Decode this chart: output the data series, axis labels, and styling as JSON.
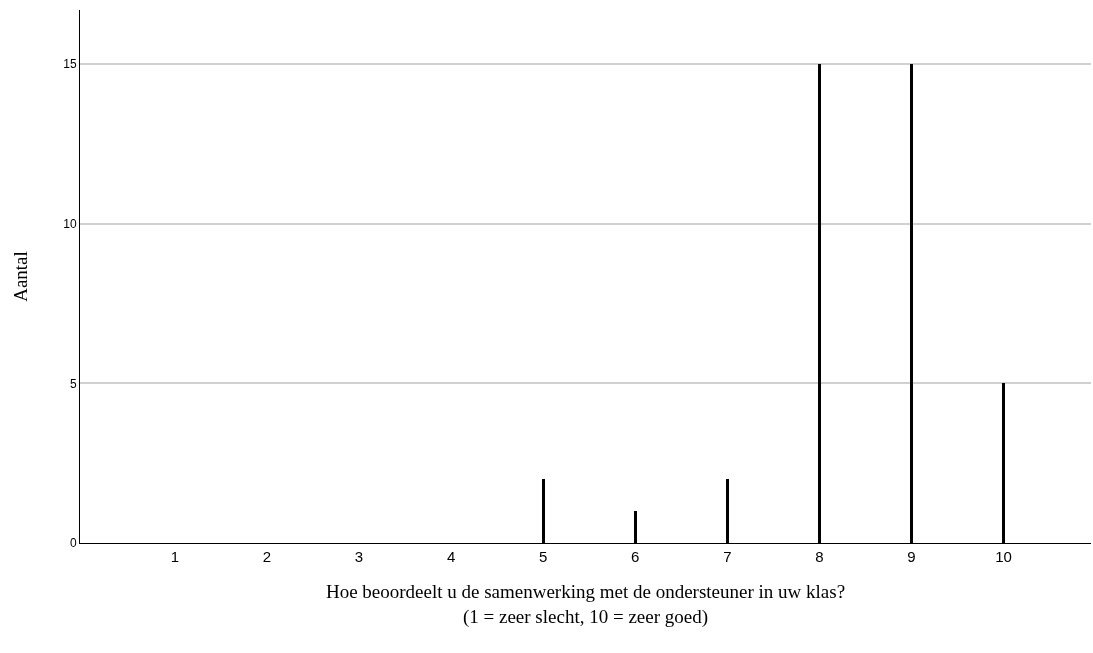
{
  "chart_data": {
    "type": "bar",
    "xlabel": "Hoe beoordeelt u de samenwerking met de ondersteuner in uw klas?\n(1 = zeer slecht, 10 = zeer goed)",
    "ylabel": "Aantal",
    "categories": [
      "1",
      "2",
      "3",
      "4",
      "5",
      "6",
      "7",
      "8",
      "9",
      "10"
    ],
    "values": [
      0,
      0,
      0,
      0,
      2,
      1,
      2,
      15,
      15,
      5
    ],
    "color": "#000000",
    "ylim": [
      0,
      16.7
    ],
    "yticks": [
      0,
      5,
      10,
      15
    ],
    "grid": "y"
  }
}
